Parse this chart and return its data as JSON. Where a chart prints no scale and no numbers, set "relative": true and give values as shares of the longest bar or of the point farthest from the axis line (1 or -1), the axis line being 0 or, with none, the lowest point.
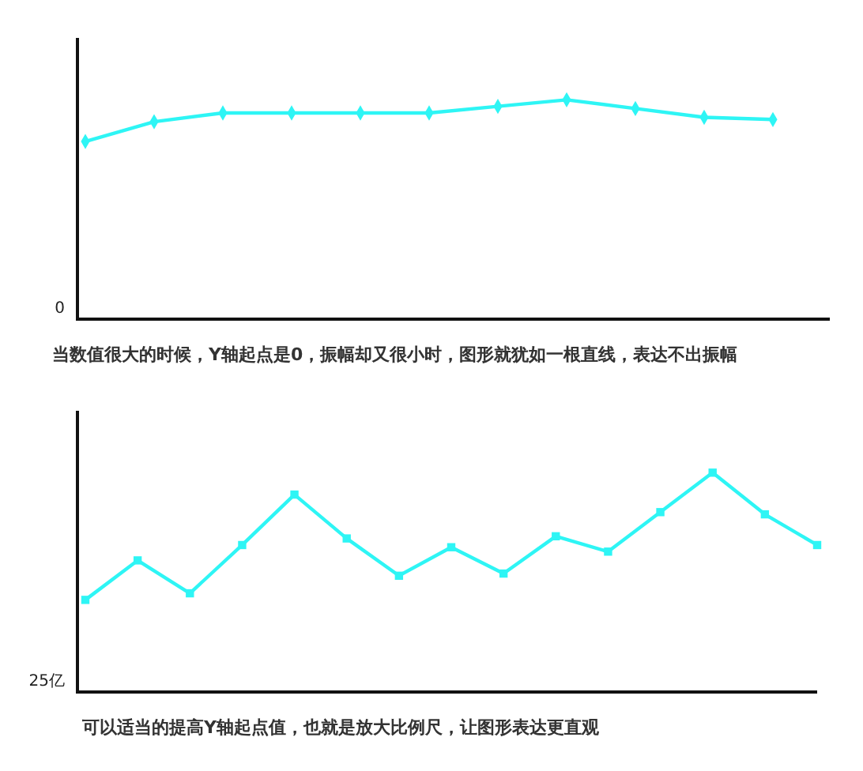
{
  "chart_data": [
    {
      "type": "line",
      "relative": true,
      "categories": [
        null,
        null,
        null,
        null,
        null,
        null,
        null,
        null,
        null,
        null,
        null
      ],
      "series": [
        {
          "color": "#2ef5f5",
          "values": [
            0.81,
            0.9,
            0.94,
            0.94,
            0.94,
            0.94,
            0.97,
            1,
            0.96,
            0.92,
            0.91
          ]
        }
      ],
      "marker": "diamond",
      "line_style": "solid",
      "annotations": [
        "0",
        "当数值很大的时候，Y轴起点是0，振幅却又很小时，图形就犹如一根直线，表达不出振幅"
      ]
    },
    {
      "type": "line",
      "relative": true,
      "categories": [
        null,
        null,
        null,
        null,
        null,
        null,
        null,
        null,
        null,
        null,
        null,
        null,
        null,
        null,
        null
      ],
      "series": [
        {
          "color": "#2ef5f5",
          "values": [
            0.42,
            0.6,
            0.45,
            0.67,
            0.9,
            0.7,
            0.53,
            0.66,
            0.54,
            0.71,
            0.64,
            0.82,
            1,
            0.81,
            0.67
          ]
        }
      ],
      "marker": "square",
      "line_style": "solid",
      "annotations": [
        "25亿",
        "可以适当的提高Y轴起点值，也就是放大比例尺，让图形表达更直观"
      ]
    }
  ]
}
